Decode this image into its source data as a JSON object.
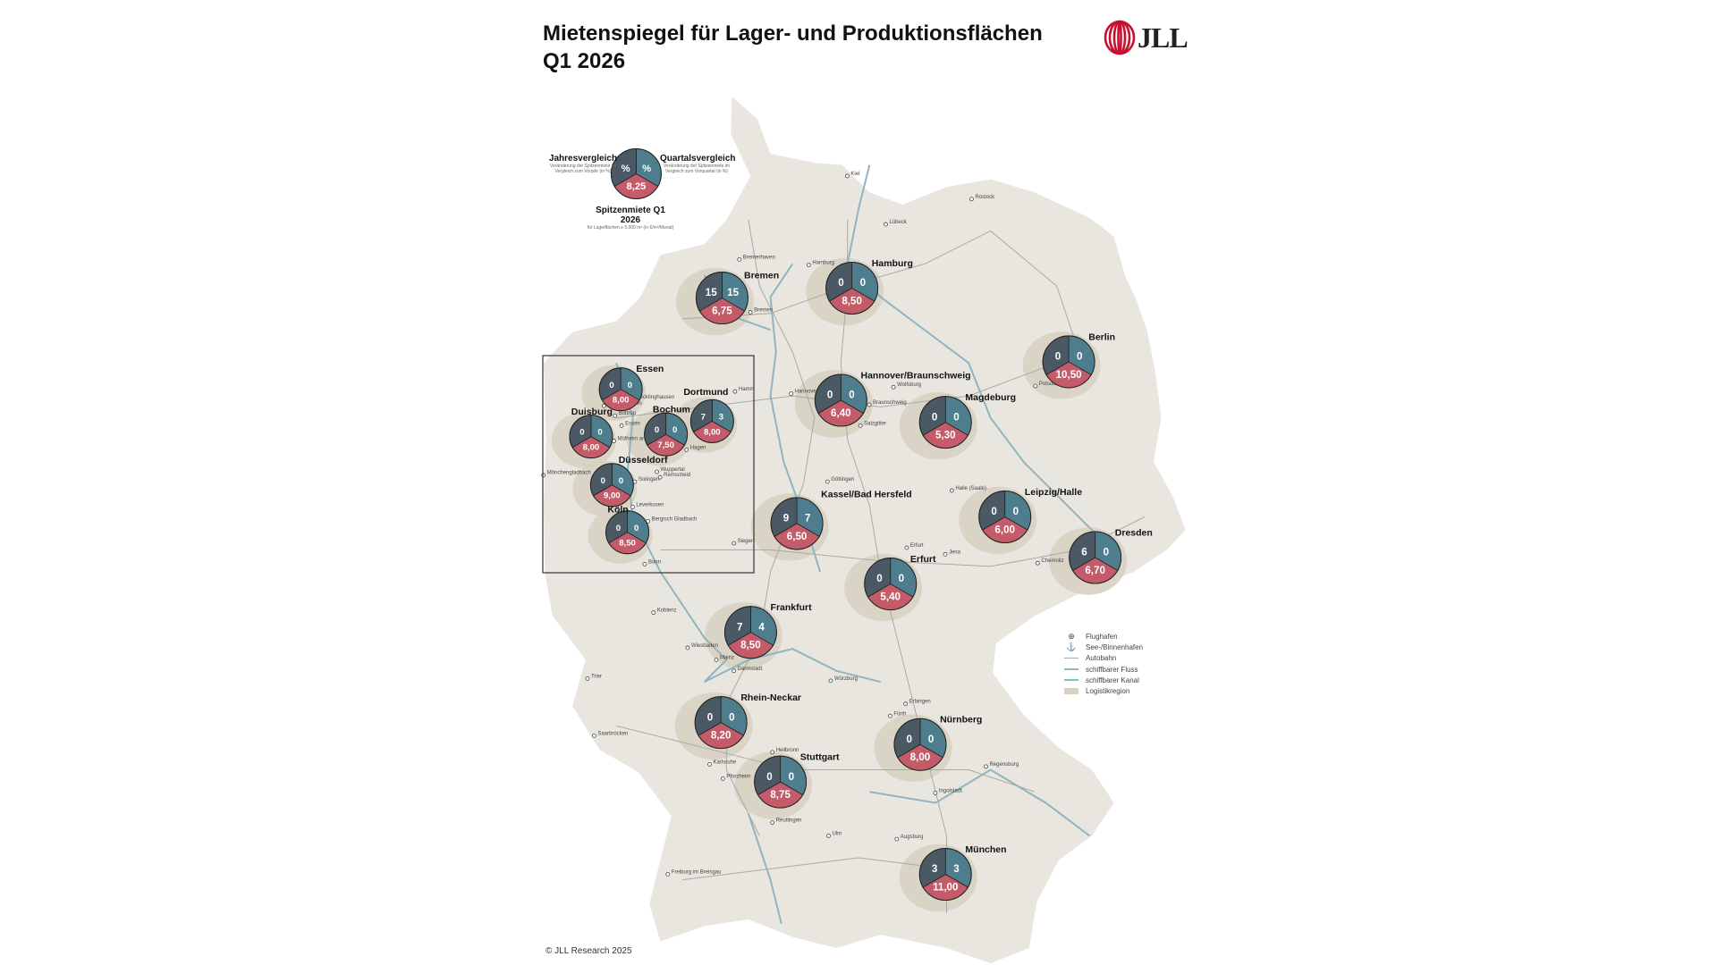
{
  "title": {
    "line1": "Mietenspiegel für Lager- und Produktionsflächen",
    "line2": "Q1 2026"
  },
  "logo": {
    "text": "JLL",
    "color": "#c8102e"
  },
  "key": {
    "year_label": "Jahresvergleich",
    "year_desc": "Veränderung der Spitzenmiete im Vergleich zum Vorjahr (in %)",
    "quarter_label": "Quartalsvergleich",
    "quarter_desc": "Veränderung der Spitzenmiete im Vergleich zum Vorquartal (in %)",
    "rent_label": "Spitzenmiete Q1 2026",
    "rent_desc": "für Lagerflächen ≥ 5.000 m² (in €/m²/Monat)",
    "pie_left": "%",
    "pie_right": "%",
    "pie_bottom": "8,25"
  },
  "colors": {
    "yoy": "#4a5964",
    "qoq": "#4e7e8e",
    "rent": "#c35b68",
    "land": "#e9e6df",
    "region": "#d8d1c3",
    "river": "#8fb4c2",
    "road": "#a9a9a4"
  },
  "markets": [
    {
      "name": "Bremen",
      "yoy": "15",
      "qoq": "15",
      "rent": "6,75"
    },
    {
      "name": "Hamburg",
      "yoy": "0",
      "qoq": "0",
      "rent": "8,50"
    },
    {
      "name": "Berlin",
      "yoy": "0",
      "qoq": "0",
      "rent": "10,50"
    },
    {
      "name": "Hannover/Braunschweig",
      "yoy": "0",
      "qoq": "0",
      "rent": "6,40"
    },
    {
      "name": "Magdeburg",
      "yoy": "0",
      "qoq": "0",
      "rent": "5,30"
    },
    {
      "name": "Kassel/Bad Hersfeld",
      "yoy": "9",
      "qoq": "7",
      "rent": "6,50"
    },
    {
      "name": "Leipzig/Halle",
      "yoy": "0",
      "qoq": "0",
      "rent": "6,00"
    },
    {
      "name": "Dresden",
      "yoy": "6",
      "qoq": "0",
      "rent": "6,70"
    },
    {
      "name": "Erfurt",
      "yoy": "0",
      "qoq": "0",
      "rent": "5,40"
    },
    {
      "name": "Frankfurt",
      "yoy": "7",
      "qoq": "4",
      "rent": "8,50"
    },
    {
      "name": "Rhein-Neckar",
      "yoy": "0",
      "qoq": "0",
      "rent": "8,20"
    },
    {
      "name": "Nürnberg",
      "yoy": "0",
      "qoq": "0",
      "rent": "8,00"
    },
    {
      "name": "Stuttgart",
      "yoy": "0",
      "qoq": "0",
      "rent": "8,75"
    },
    {
      "name": "München",
      "yoy": "3",
      "qoq": "3",
      "rent": "11,00"
    },
    {
      "name": "Essen",
      "yoy": "0",
      "qoq": "0",
      "rent": "8,00"
    },
    {
      "name": "Dortmund",
      "yoy": "7",
      "qoq": "3",
      "rent": "8,00"
    },
    {
      "name": "Duisburg",
      "yoy": "0",
      "qoq": "0",
      "rent": "8,00"
    },
    {
      "name": "Bochum",
      "yoy": "0",
      "qoq": "0",
      "rent": "7,50"
    },
    {
      "name": "Düsseldorf",
      "yoy": "0",
      "qoq": "0",
      "rent": "9,00"
    },
    {
      "name": "Köln",
      "yoy": "0",
      "qoq": "0",
      "rent": "8,50"
    }
  ],
  "places": [
    "Kiel",
    "Rostock",
    "Lübeck",
    "Bremerhaven",
    "Hamburg",
    "Bremen",
    "Hannover",
    "Wolfsburg",
    "Braunschweig",
    "Salzgitter",
    "Potsdam",
    "Göttingen",
    "Halle (Saale)",
    "Erfurt",
    "Jena",
    "Chemnitz",
    "Koblenz",
    "Wiesbaden",
    "Mainz",
    "Darmstadt",
    "Würzburg",
    "Trier",
    "Saarbrücken",
    "Erlangen",
    "Fürth",
    "Heilbronn",
    "Karlsruhe",
    "Pforzheim",
    "Regensburg",
    "Ingolstadt",
    "Reutlingen",
    "Ulm",
    "Augsburg",
    "Freiburg im Breisgau",
    "Siegen",
    "Hamm",
    "Recklinghausen",
    "Gelsenkirchen",
    "Bottrop",
    "Essen",
    "Mülheim an der Ruhr",
    "Hagen",
    "Wuppertal",
    "Mönchengladbach",
    "Solingen",
    "Remscheid",
    "Leverkusen",
    "Bergisch Gladbach",
    "Bonn"
  ],
  "legend": [
    {
      "label": "Flughafen",
      "icon": "airport-icon"
    },
    {
      "label": "See-/Binnenhafen",
      "icon": "port-icon"
    },
    {
      "label": "Autobahn",
      "icon": "motorway-line"
    },
    {
      "label": "schiffbarer Fluss",
      "icon": "river-line"
    },
    {
      "label": "schiffbarer Kanal",
      "icon": "canal-line"
    },
    {
      "label": "Logistikregion",
      "icon": "region-swatch"
    }
  ],
  "copyright": "© JLL Research 2025"
}
